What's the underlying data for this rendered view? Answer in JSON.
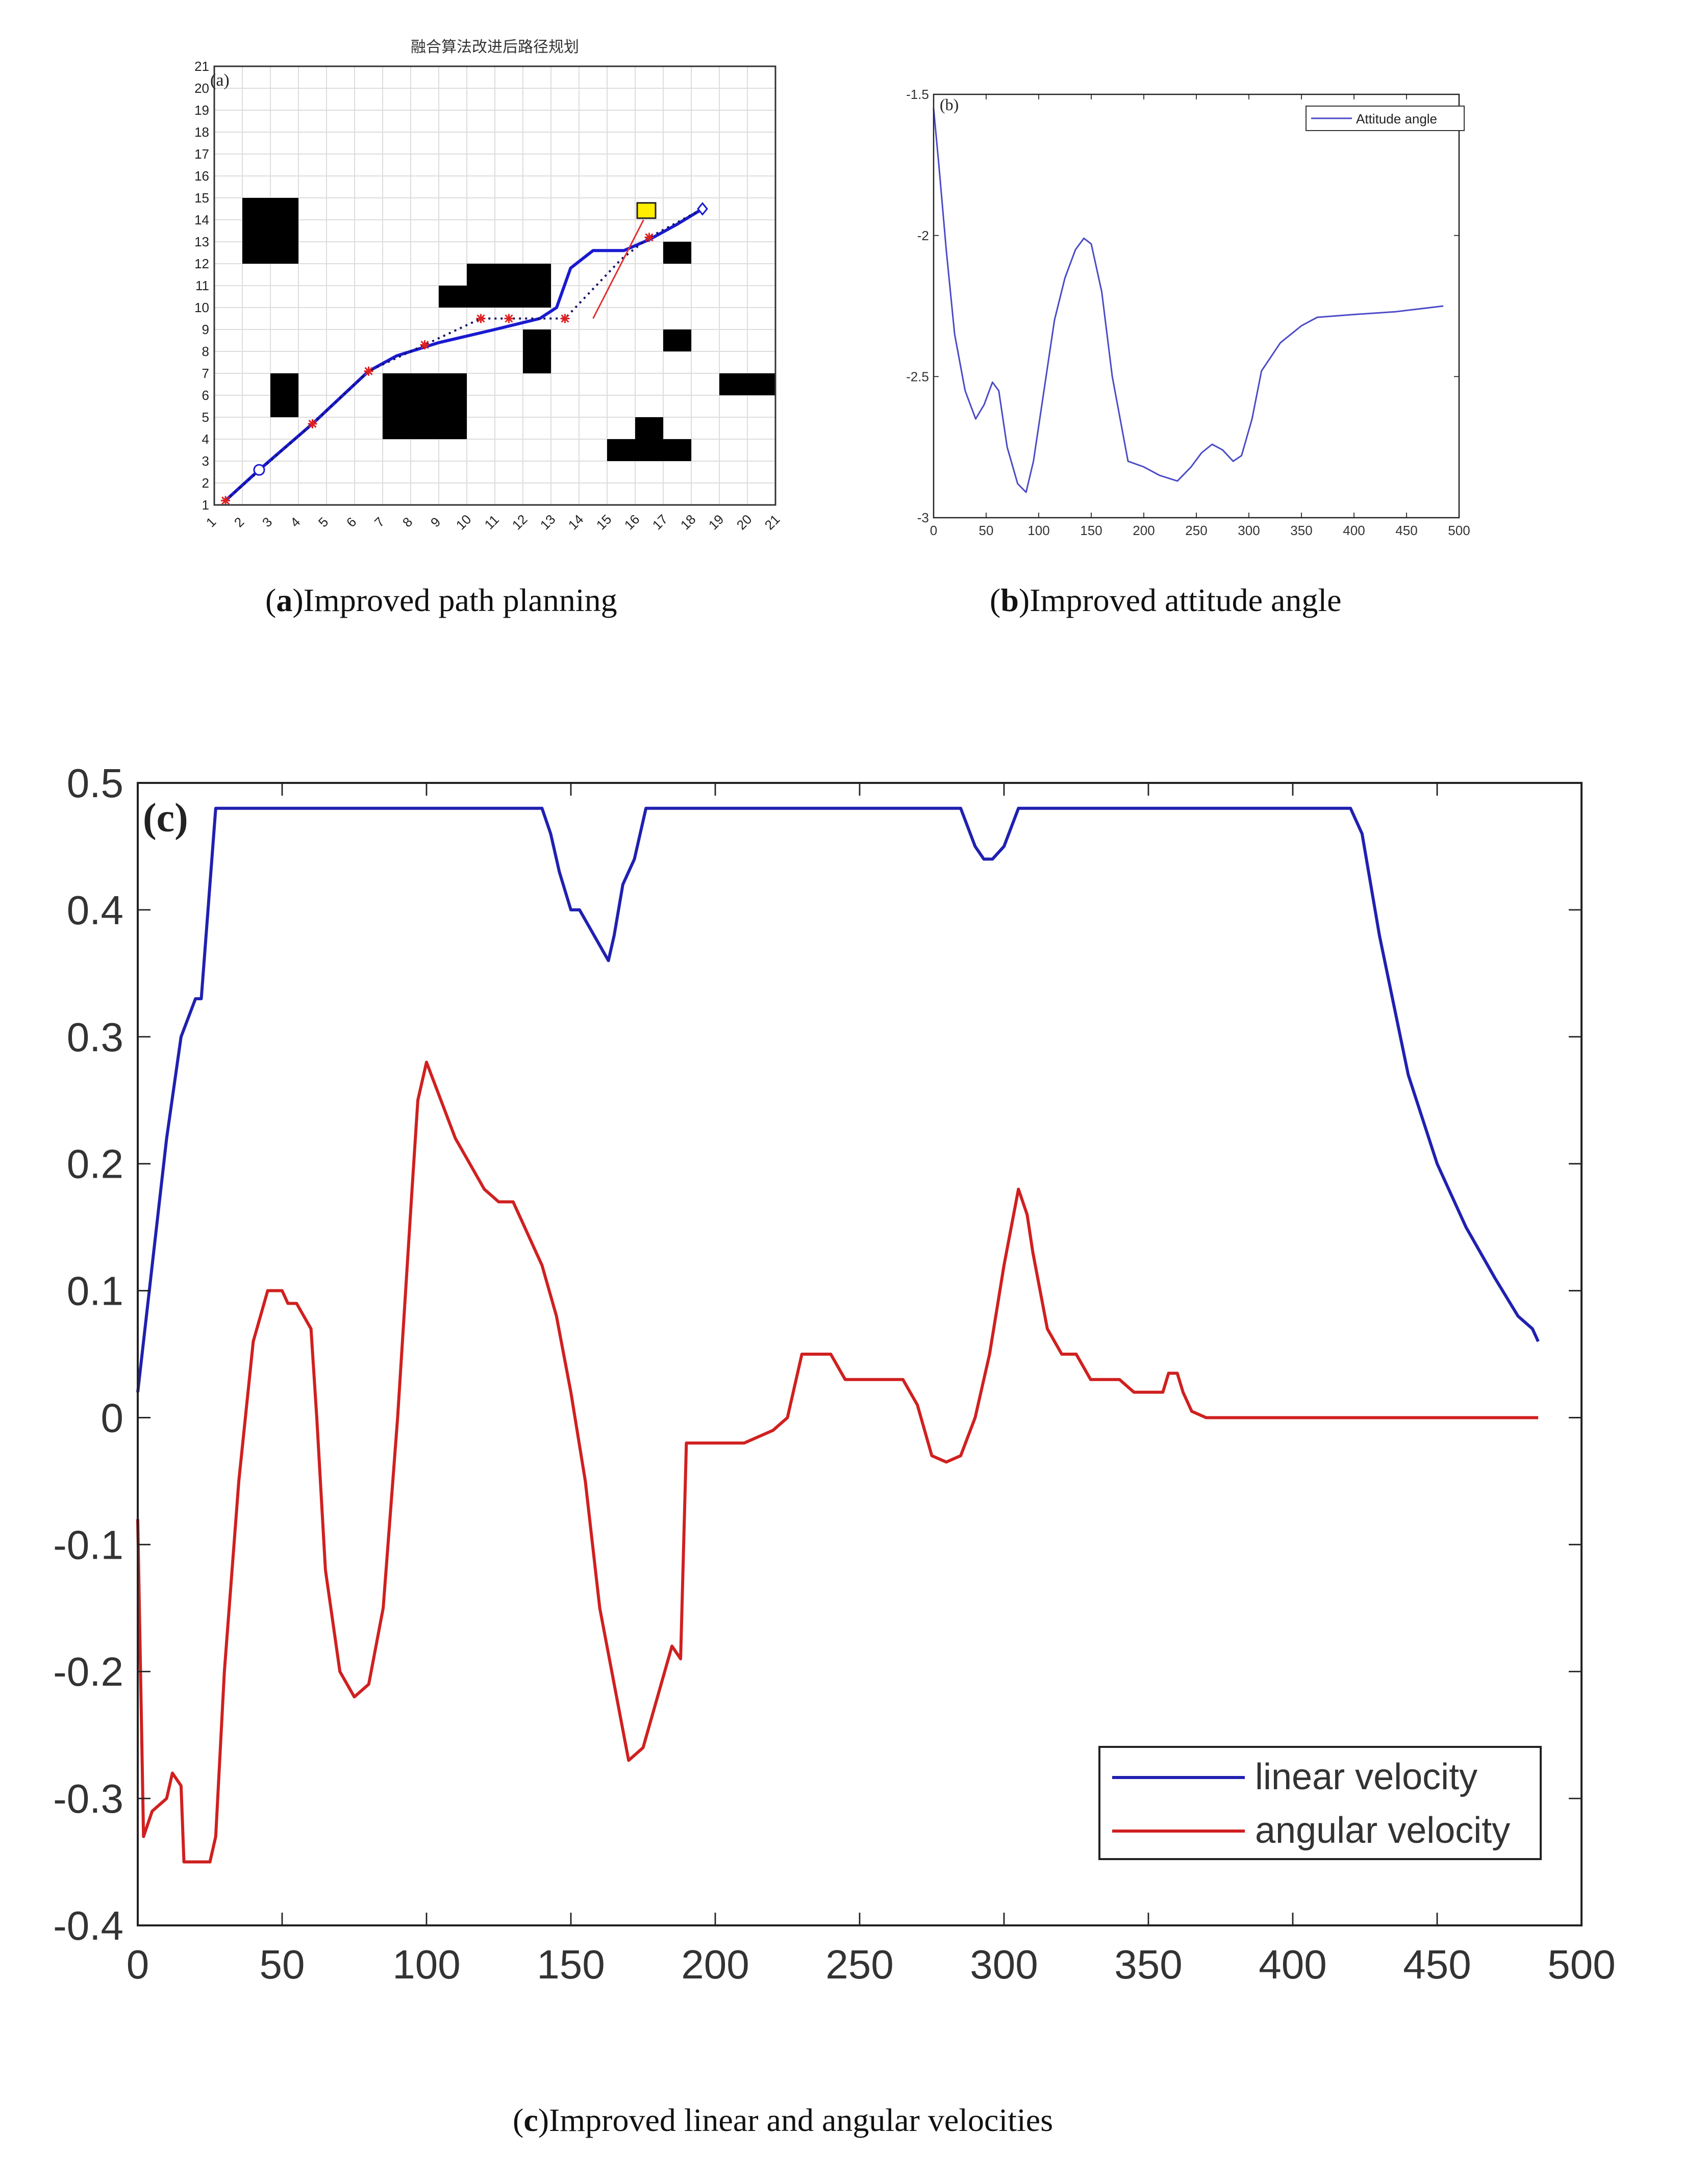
{
  "captions": {
    "a_letter": "a",
    "a_text": "Improved path planning",
    "b_letter": "b",
    "b_text": "Improved attitude angle",
    "c_letter": "c",
    "c_text": "Improved linear and angular velocities"
  },
  "chart_data": [
    {
      "type": "scatter",
      "panel_label": "(a)",
      "title": "融合算法改进后路径规划",
      "xlim": [
        1,
        21
      ],
      "ylim": [
        1,
        21
      ],
      "xticks": [
        "1",
        "2",
        "3",
        "4",
        "5",
        "6",
        "7",
        "8",
        "9",
        "10",
        "11",
        "12",
        "13",
        "14",
        "15",
        "16",
        "17",
        "18",
        "19",
        "20",
        "21"
      ],
      "yticks": [
        "1",
        "2",
        "3",
        "4",
        "5",
        "6",
        "7",
        "8",
        "9",
        "10",
        "11",
        "12",
        "13",
        "14",
        "15",
        "16",
        "17",
        "18",
        "19",
        "20",
        "21"
      ],
      "grid": true,
      "obstacles": [
        [
          2,
          12,
          4,
          15
        ],
        [
          3,
          5,
          4,
          7
        ],
        [
          7,
          4,
          10,
          7
        ],
        [
          9,
          10,
          10,
          11
        ],
        [
          10,
          10,
          13,
          12
        ],
        [
          12,
          7,
          13,
          9
        ],
        [
          15,
          3,
          16,
          4
        ],
        [
          16,
          3,
          18,
          4
        ],
        [
          16,
          4,
          17,
          5
        ],
        [
          17,
          12,
          18,
          13
        ],
        [
          17,
          8,
          18,
          9
        ],
        [
          19,
          6,
          21,
          7
        ]
      ],
      "series": [
        {
          "role": "smooth-path",
          "color": "#1a1ad0",
          "points": [
            [
              1.4,
              1.2
            ],
            [
              2.6,
              2.6
            ],
            [
              4.5,
              4.7
            ],
            [
              6.5,
              7.1
            ],
            [
              7.5,
              7.8
            ],
            [
              9,
              8.4
            ],
            [
              11,
              9.0
            ],
            [
              12.6,
              9.5
            ],
            [
              13.2,
              10.0
            ],
            [
              13.7,
              11.8
            ],
            [
              14.5,
              12.6
            ],
            [
              15.6,
              12.6
            ],
            [
              16.5,
              13.1
            ],
            [
              17.5,
              13.8
            ],
            [
              18.4,
              14.5
            ]
          ]
        },
        {
          "role": "dotted-path",
          "color": "#111166",
          "points": [
            [
              1.4,
              1.2
            ],
            [
              4.5,
              4.7
            ],
            [
              6.5,
              7.1
            ],
            [
              8.5,
              8.3
            ],
            [
              10.5,
              9.5
            ],
            [
              11.5,
              9.5
            ],
            [
              13.5,
              9.5
            ],
            [
              15.5,
              12.2
            ],
            [
              16.5,
              13.2
            ],
            [
              18.4,
              14.5
            ]
          ]
        },
        {
          "role": "waypoints",
          "color": "#e02020",
          "points": [
            [
              1.4,
              1.2
            ],
            [
              4.5,
              4.7
            ],
            [
              6.5,
              7.1
            ],
            [
              8.5,
              8.3
            ],
            [
              10.5,
              9.5
            ],
            [
              11.5,
              9.5
            ],
            [
              13.5,
              9.5
            ],
            [
              16.5,
              13.2
            ]
          ]
        },
        {
          "role": "heading-line",
          "color": "#e03030",
          "points": [
            [
              14.5,
              9.5
            ],
            [
              16.3,
              14.0
            ]
          ]
        }
      ],
      "markers": {
        "start_circle": [
          2.6,
          2.6
        ],
        "goal_square": [
          16.4,
          14.4
        ],
        "end_diamond": [
          18.4,
          14.5
        ]
      },
      "colors": {
        "obstacle": "#000000",
        "goal": "#ffee00"
      }
    },
    {
      "type": "line",
      "panel_label": "(b)",
      "xlim": [
        0,
        500
      ],
      "ylim": [
        -3,
        -1.5
      ],
      "xticks": [
        "0",
        "50",
        "100",
        "150",
        "200",
        "250",
        "300",
        "350",
        "400",
        "450",
        "500"
      ],
      "yticks": [
        "-3",
        "-2.5",
        "-2",
        "-1.5"
      ],
      "legend_position": "top-right",
      "series": [
        {
          "name": "Attitude angle",
          "color": "#4b4bc8",
          "x": [
            0,
            5,
            12,
            20,
            30,
            40,
            48,
            56,
            62,
            70,
            80,
            88,
            95,
            105,
            115,
            125,
            135,
            143,
            150,
            160,
            170,
            185,
            200,
            215,
            232,
            245,
            255,
            265,
            275,
            285,
            293,
            303,
            312,
            330,
            350,
            365,
            400,
            440,
            485
          ],
          "y": [
            -1.55,
            -1.75,
            -2.05,
            -2.35,
            -2.55,
            -2.65,
            -2.6,
            -2.52,
            -2.55,
            -2.75,
            -2.88,
            -2.91,
            -2.8,
            -2.55,
            -2.3,
            -2.15,
            -2.05,
            -2.01,
            -2.03,
            -2.2,
            -2.5,
            -2.8,
            -2.82,
            -2.85,
            -2.87,
            -2.82,
            -2.77,
            -2.74,
            -2.76,
            -2.8,
            -2.78,
            -2.65,
            -2.48,
            -2.38,
            -2.32,
            -2.29,
            -2.28,
            -2.27,
            -2.25
          ]
        }
      ]
    },
    {
      "type": "line",
      "panel_label": "(c)",
      "xlim": [
        0,
        500
      ],
      "ylim": [
        -0.4,
        0.5
      ],
      "xticks": [
        "0",
        "50",
        "100",
        "150",
        "200",
        "250",
        "300",
        "350",
        "400",
        "450",
        "500"
      ],
      "yticks": [
        "-0.4",
        "-0.3",
        "-0.2",
        "-0.1",
        "0",
        "0.1",
        "0.2",
        "0.3",
        "0.4",
        "0.5"
      ],
      "legend_position": "bottom-right",
      "series": [
        {
          "name": "linear velocity",
          "color": "#2020b0",
          "x": [
            0,
            5,
            10,
            15,
            20,
            22,
            25,
            27,
            30,
            60,
            100,
            140,
            143,
            146,
            150,
            153,
            158,
            163,
            165,
            168,
            172,
            176,
            180,
            280,
            285,
            290,
            293,
            296,
            300,
            305,
            310,
            350,
            400,
            420,
            424,
            430,
            440,
            450,
            460,
            470,
            478,
            483,
            485
          ],
          "y": [
            0.02,
            0.12,
            0.22,
            0.3,
            0.33,
            0.33,
            0.42,
            0.48,
            0.48,
            0.48,
            0.48,
            0.48,
            0.46,
            0.43,
            0.4,
            0.4,
            0.38,
            0.36,
            0.38,
            0.42,
            0.44,
            0.48,
            0.48,
            0.48,
            0.48,
            0.45,
            0.44,
            0.44,
            0.45,
            0.48,
            0.48,
            0.48,
            0.48,
            0.48,
            0.46,
            0.38,
            0.27,
            0.2,
            0.15,
            0.11,
            0.08,
            0.07,
            0.06
          ]
        },
        {
          "name": "angular velocity",
          "color": "#d02020",
          "x": [
            0,
            2,
            5,
            10,
            12,
            15,
            16,
            20,
            25,
            27,
            30,
            35,
            40,
            45,
            48,
            50,
            52,
            55,
            60,
            62,
            65,
            70,
            75,
            80,
            85,
            90,
            95,
            97,
            100,
            105,
            110,
            115,
            120,
            125,
            130,
            140,
            145,
            150,
            155,
            160,
            165,
            170,
            175,
            180,
            185,
            188,
            190,
            195,
            200,
            210,
            220,
            225,
            230,
            232,
            235,
            240,
            245,
            255,
            260,
            265,
            270,
            275,
            280,
            285,
            290,
            295,
            300,
            305,
            308,
            310,
            315,
            320,
            325,
            330,
            340,
            345,
            350,
            355,
            357,
            360,
            362,
            365,
            370,
            400,
            450,
            485
          ],
          "y": [
            -0.08,
            -0.33,
            -0.31,
            -0.3,
            -0.28,
            -0.29,
            -0.35,
            -0.35,
            -0.35,
            -0.33,
            -0.2,
            -0.05,
            0.06,
            0.1,
            0.1,
            0.1,
            0.09,
            0.09,
            0.07,
            0.0,
            -0.12,
            -0.2,
            -0.22,
            -0.21,
            -0.15,
            0.0,
            0.18,
            0.25,
            0.28,
            0.25,
            0.22,
            0.2,
            0.18,
            0.17,
            0.17,
            0.12,
            0.08,
            0.02,
            -0.05,
            -0.15,
            -0.21,
            -0.27,
            -0.26,
            -0.22,
            -0.18,
            -0.19,
            -0.02,
            -0.02,
            -0.02,
            -0.02,
            -0.01,
            0.0,
            0.05,
            0.05,
            0.05,
            0.05,
            0.03,
            0.03,
            0.03,
            0.03,
            0.01,
            -0.03,
            -0.035,
            -0.03,
            0.0,
            0.05,
            0.12,
            0.18,
            0.16,
            0.13,
            0.07,
            0.05,
            0.05,
            0.03,
            0.03,
            0.02,
            0.02,
            0.02,
            0.035,
            0.035,
            0.02,
            0.005,
            0.0,
            0.0,
            0.0,
            0.0
          ]
        }
      ]
    }
  ]
}
